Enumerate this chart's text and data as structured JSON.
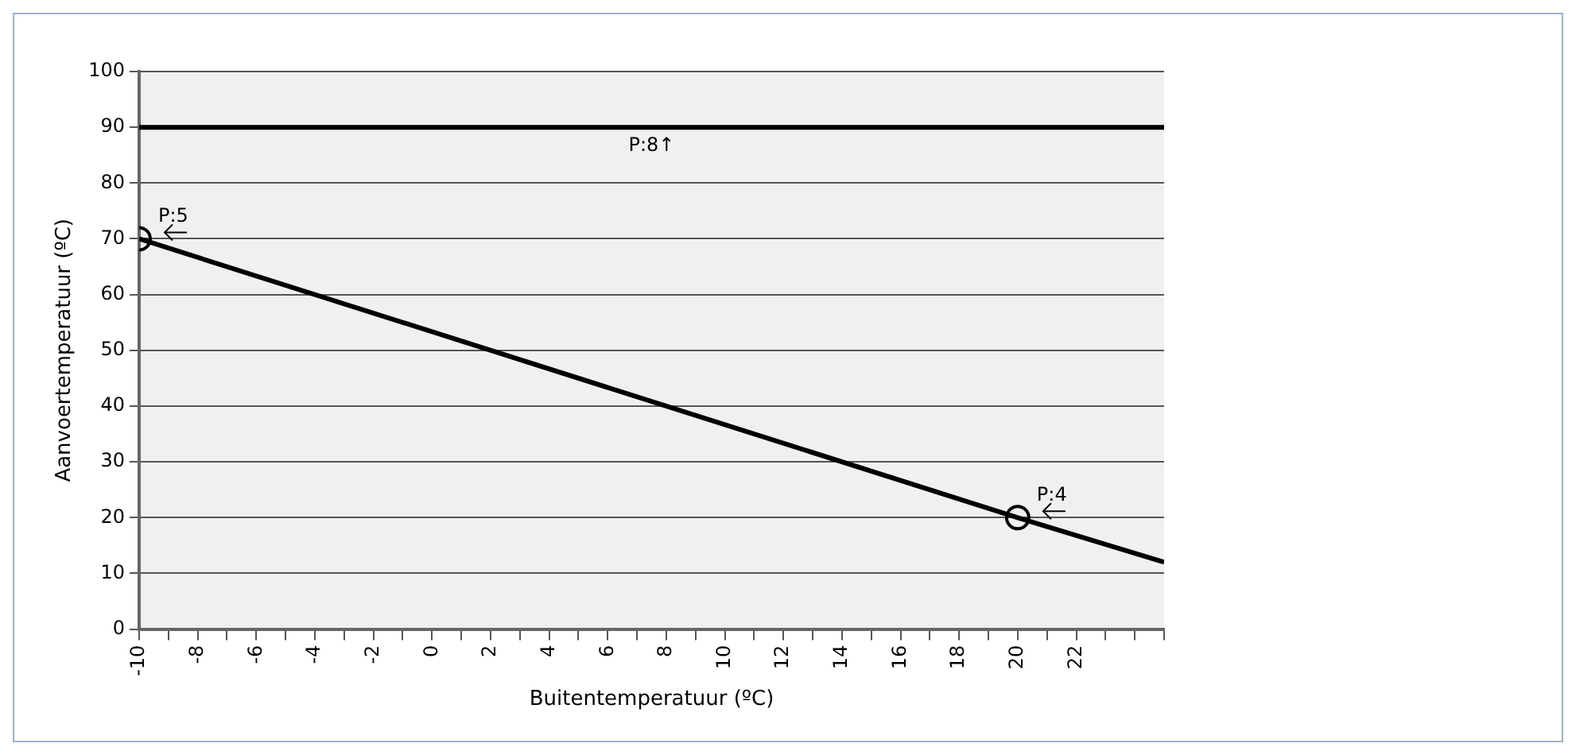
{
  "chart_data": {
    "type": "line",
    "xlabel": "Buitentemperatuur (ºC)",
    "ylabel": "Aanvoertemperatuur (ºC)",
    "series": [
      {
        "x": [
          -10,
          20,
          25
        ],
        "values": [
          70,
          20,
          12
        ],
        "color": "#000000",
        "marker": "none"
      },
      {
        "type": "scatter",
        "x": [
          -10,
          20
        ],
        "values": [
          70,
          20
        ],
        "color": "#000000",
        "marker": "circle"
      }
    ],
    "xlim": [
      -10,
      25
    ],
    "xticks": [
      -10,
      {
        "value": -9,
        "label": null
      },
      -8,
      {
        "value": -7,
        "label": null
      },
      -6,
      {
        "value": -5,
        "label": null
      },
      -4,
      {
        "value": -3,
        "label": null
      },
      -2,
      {
        "value": -1,
        "label": null
      },
      0,
      {
        "value": 1,
        "label": null
      },
      2,
      {
        "value": 3,
        "label": null
      },
      4,
      {
        "value": 5,
        "label": null
      },
      6,
      {
        "value": 7,
        "label": null
      },
      8,
      {
        "value": 9,
        "label": null
      },
      10,
      {
        "value": 11,
        "label": null
      },
      12,
      {
        "value": 13,
        "label": null
      },
      14,
      {
        "value": 15,
        "label": null
      },
      16,
      {
        "value": 17,
        "label": null
      },
      18,
      {
        "value": 19,
        "label": null
      },
      20,
      {
        "value": 21,
        "label": null
      },
      22,
      {
        "value": 23,
        "label": null
      },
      {
        "value": 24,
        "label": null
      },
      {
        "value": 25,
        "label": null
      }
    ],
    "ylim": [
      0,
      100
    ],
    "yticks": [
      0,
      10,
      20,
      30,
      40,
      50,
      60,
      70,
      80,
      90,
      100
    ],
    "grid": "y",
    "legend": false,
    "ref_lines": [
      {
        "axis": "y",
        "value": 90,
        "color": "#000000"
      }
    ],
    "annotations": [
      {
        "text": "P:8↑",
        "y": 90
      },
      {
        "text": "P:5",
        "x": -10,
        "y": 70
      },
      {
        "text": "P:4",
        "x": 20,
        "y": 20
      }
    ]
  }
}
